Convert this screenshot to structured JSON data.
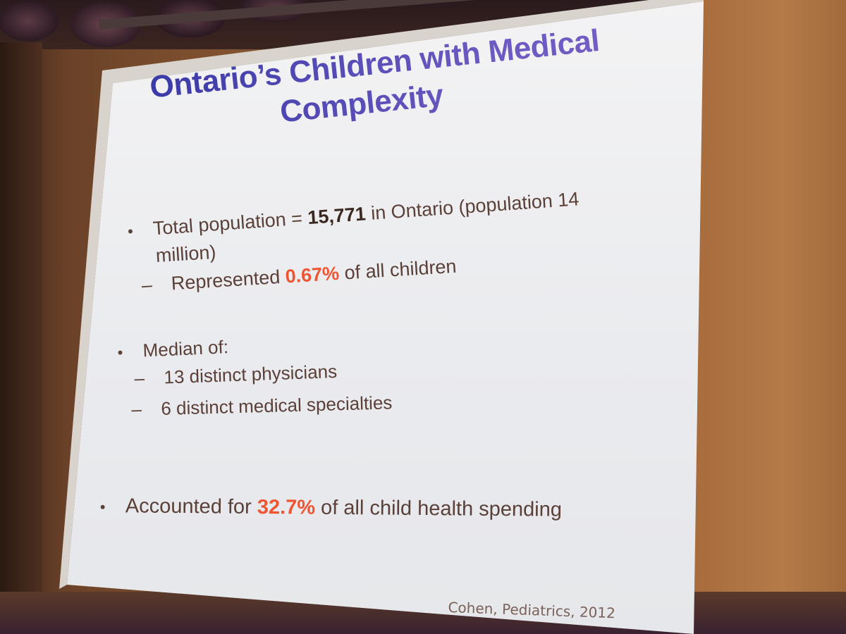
{
  "slide": {
    "title_line1": "Ontario’s Children with Medical",
    "title_line2": "Complexity",
    "bullet1": {
      "prefix": "Total population  = ",
      "value": "15,771",
      "suffix": " in Ontario (population 14",
      "continuation": "million)",
      "sub": {
        "prefix": "Represented ",
        "value": "0.67%",
        "suffix": " of all children"
      }
    },
    "bullet2": {
      "text": "Median of:",
      "subs": [
        "13 distinct physicians",
        "6 distinct medical specialties"
      ]
    },
    "bullet3": {
      "prefix": "Accounted for ",
      "value": "32.7%",
      "suffix": " of all child health spending"
    },
    "citation": "Cohen, Pediatrics, 2012"
  },
  "colors": {
    "title": "#5a4aa8",
    "body_text": "#5a4038",
    "highlight": "#ee5533"
  }
}
